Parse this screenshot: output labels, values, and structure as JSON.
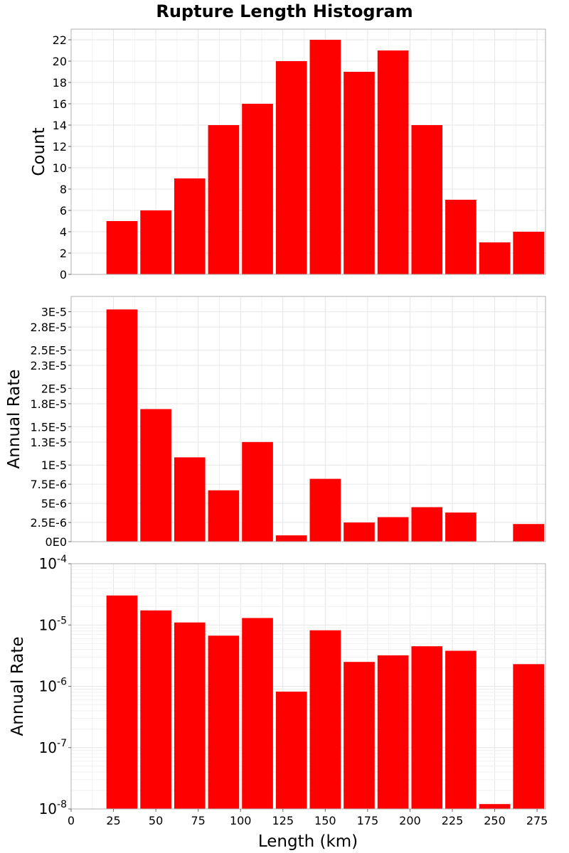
{
  "chart_data": {
    "title": "Rupture Length Histogram",
    "type": "bar",
    "xlabel": "Length (km)",
    "xlim": [
      0,
      280
    ],
    "bin_width": 20,
    "x": [
      30,
      50,
      70,
      90,
      110,
      130,
      150,
      170,
      190,
      210,
      230,
      250,
      270
    ],
    "x_tick_labels": [
      "0",
      "25",
      "50",
      "75",
      "100",
      "125",
      "150",
      "175",
      "200",
      "225",
      "250",
      "275"
    ],
    "bar_color": "#ff0000",
    "grid": true,
    "panels": [
      {
        "ylabel": "Count",
        "scale": "linear",
        "ylim": [
          0,
          23
        ],
        "y_tick_labels": [
          "0",
          "2",
          "4",
          "6",
          "8",
          "10",
          "12",
          "14",
          "16",
          "18",
          "20",
          "22"
        ],
        "values": [
          5,
          6,
          9,
          14,
          16,
          20,
          22,
          19,
          21,
          14,
          7,
          3,
          4
        ]
      },
      {
        "ylabel": "Annual Rate",
        "scale": "linear",
        "ylim": [
          0,
          3.2e-05
        ],
        "y_tick_labels": [
          "0E0",
          "2.5E-6",
          "5E-6",
          "7.5E-6",
          "1E-5",
          "1.3E-5",
          "1.5E-5",
          "1.8E-5",
          "2E-5",
          "2.3E-5",
          "2.5E-5",
          "2.8E-5",
          "3E-5"
        ],
        "values": [
          3.03e-05,
          1.73e-05,
          1.1e-05,
          6.7e-06,
          1.3e-05,
          8.2e-07,
          8.2e-06,
          2.5e-06,
          3.2e-06,
          4.5e-06,
          3.8e-06,
          1.2e-08,
          2.3e-06
        ]
      },
      {
        "ylabel": "Annual Rate",
        "scale": "log",
        "ylim": [
          1e-08,
          0.0001
        ],
        "y_tick_labels": [
          "10^-8",
          "10^-7",
          "10^-6",
          "10^-5",
          "10^-4"
        ],
        "values": [
          3.03e-05,
          1.73e-05,
          1.1e-05,
          6.7e-06,
          1.3e-05,
          8.2e-07,
          8.2e-06,
          2.5e-06,
          3.2e-06,
          4.5e-06,
          3.8e-06,
          1.2e-08,
          2.3e-06
        ]
      }
    ]
  }
}
